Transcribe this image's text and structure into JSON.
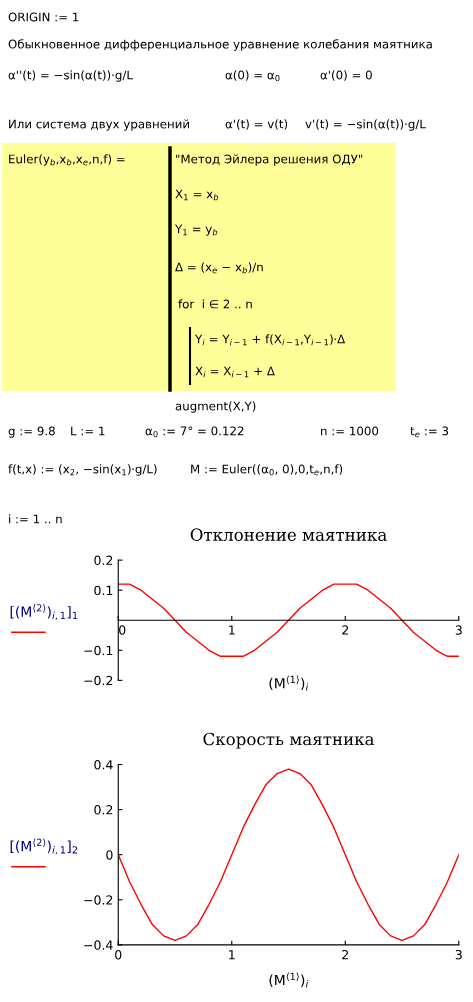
{
  "chart_data": [
    {
      "type": "other",
      "annotations": [
        "ORIGIN := 1",
        "Обыкновенное дифференциальное уравнение колебания маятника",
        "α''(t) = −sin(α(t))·g/L",
        "α(0) = α$_{0}$",
        "α'(0) = 0",
        "Или система двух уравнений",
        "α'(t) = v(t)",
        "v'(t) = −sin(α(t))·g/L",
        "Euler(y$_{b}$,x$_{b}$,x$_{e}$,n,f) =",
        "\"Метод Эйлера решения ОДУ\"",
        "X$_{1}$ = x$_{b}$",
        "Y$_{1}$ = y$_{b}$",
        "Δ = (x$_{e}$ − x$_{b}$)/n",
        "for  i ∈ 2 .. n",
        "Y$_{i}$ = Y$_{i−1}$ + f(X$_{i−1}$,Y$_{i−1}$)·Δ",
        "X$_{i}$ = X$_{i−1}$ + Δ",
        "augment(X,Y)",
        "g := 9.8",
        "L := 1",
        "α$_{0}$ := 7° = 0.122",
        "n := 1000",
        "t$_{e}$ := 3",
        "f(t,x) := (x$_{2}$, −sin(x$_{1}$)·g/L)",
        "M := Euler((α$_{0}$, 0),0,t$_{e}$,n,f)",
        "i := 1 .. n"
      ]
    },
    {
      "type": "line",
      "title": "Отклонение маятника",
      "xlabel": "(M$^{⟨1⟩}$)$_{i}$",
      "x": [
        0,
        0.1,
        0.2,
        0.3,
        0.4,
        0.5,
        0.6,
        0.7,
        0.8,
        0.9,
        1,
        1.1,
        1.2,
        1.3,
        1.4,
        1.5,
        1.6,
        1.7,
        1.8,
        1.9,
        2,
        2.1,
        2.2,
        2.3,
        2.4,
        2.5,
        2.6,
        2.7,
        2.8,
        2.9,
        3
      ],
      "series": [
        {
          "name": "[(M$^{⟨2⟩}$)$_{i,1}$]$_{1}$",
          "color": "#ff0000",
          "values": [
            0.12,
            0.12,
            0.1,
            0.07,
            0.04,
            0.0,
            -0.04,
            -0.07,
            -0.1,
            -0.12,
            -0.12,
            -0.12,
            -0.1,
            -0.07,
            -0.04,
            0.0,
            0.04,
            0.07,
            0.1,
            0.12,
            0.12,
            0.12,
            0.1,
            0.07,
            0.04,
            0.0,
            -0.04,
            -0.07,
            -0.1,
            -0.12,
            -0.12
          ]
        }
      ],
      "xlim": [
        0,
        3
      ],
      "ylim": [
        -0.2,
        0.2
      ],
      "xticks": [
        0,
        1,
        2,
        3
      ],
      "yticks": [
        -0.2,
        -0.1,
        0.1,
        0.2
      ],
      "legend": "left",
      "line_style": "solid"
    },
    {
      "type": "line",
      "title": "Скорость маятника",
      "xlabel": "(M$^{⟨1⟩}$)$_{i}$",
      "x": [
        0,
        0.1,
        0.2,
        0.3,
        0.4,
        0.5,
        0.6,
        0.7,
        0.8,
        0.9,
        1,
        1.1,
        1.2,
        1.3,
        1.4,
        1.5,
        1.6,
        1.7,
        1.8,
        1.9,
        2,
        2.1,
        2.2,
        2.3,
        2.4,
        2.5,
        2.6,
        2.7,
        2.8,
        2.9,
        3
      ],
      "series": [
        {
          "name": "[(M$^{⟨2⟩}$)$_{i,1}$]$_{2}$",
          "color": "#ff0000",
          "values": [
            0,
            -0.12,
            -0.22,
            -0.31,
            -0.36,
            -0.38,
            -0.36,
            -0.31,
            -0.22,
            -0.12,
            0,
            0.12,
            0.22,
            0.31,
            0.36,
            0.38,
            0.36,
            0.31,
            0.22,
            0.12,
            0,
            -0.12,
            -0.22,
            -0.31,
            -0.36,
            -0.38,
            -0.36,
            -0.31,
            -0.22,
            -0.12,
            0
          ]
        }
      ],
      "xlim": [
        0,
        3
      ],
      "ylim": [
        -0.4,
        0.4
      ],
      "xticks": [
        0,
        1,
        2,
        3
      ],
      "yticks": [
        -0.4,
        -0.2,
        0,
        0.2,
        0.4
      ],
      "legend": "left",
      "line_style": "solid"
    }
  ]
}
